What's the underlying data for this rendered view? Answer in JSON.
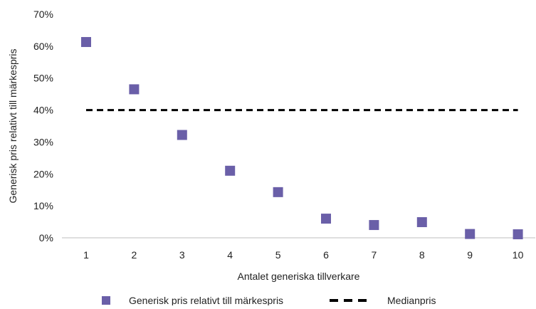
{
  "chart_data": {
    "type": "scatter",
    "x": [
      1,
      2,
      3,
      4,
      5,
      6,
      7,
      8,
      9,
      10
    ],
    "series": [
      {
        "name": "Generisk pris relativt till märkespris",
        "values": [
          0.613,
          0.465,
          0.322,
          0.21,
          0.143,
          0.06,
          0.04,
          0.049,
          0.012,
          0.011
        ],
        "color": "#6a5fa8",
        "marker": "square"
      },
      {
        "name": "Medianpris",
        "values": [
          0.4,
          0.4,
          0.4,
          0.4,
          0.4,
          0.4,
          0.4,
          0.4,
          0.4,
          0.4
        ],
        "color": "#000000",
        "style": "dashed-line"
      }
    ],
    "xlabel": "Antalet generiska tillverkare",
    "ylabel": "Generisk pris relativt till märkespris",
    "xticks": [
      "1",
      "2",
      "3",
      "4",
      "5",
      "6",
      "7",
      "8",
      "9",
      "10"
    ],
    "yticks": [
      "0%",
      "10%",
      "20%",
      "30%",
      "40%",
      "50%",
      "60%",
      "70%"
    ],
    "ylim": [
      0,
      0.7
    ],
    "grid": false,
    "legend": "bottom"
  }
}
